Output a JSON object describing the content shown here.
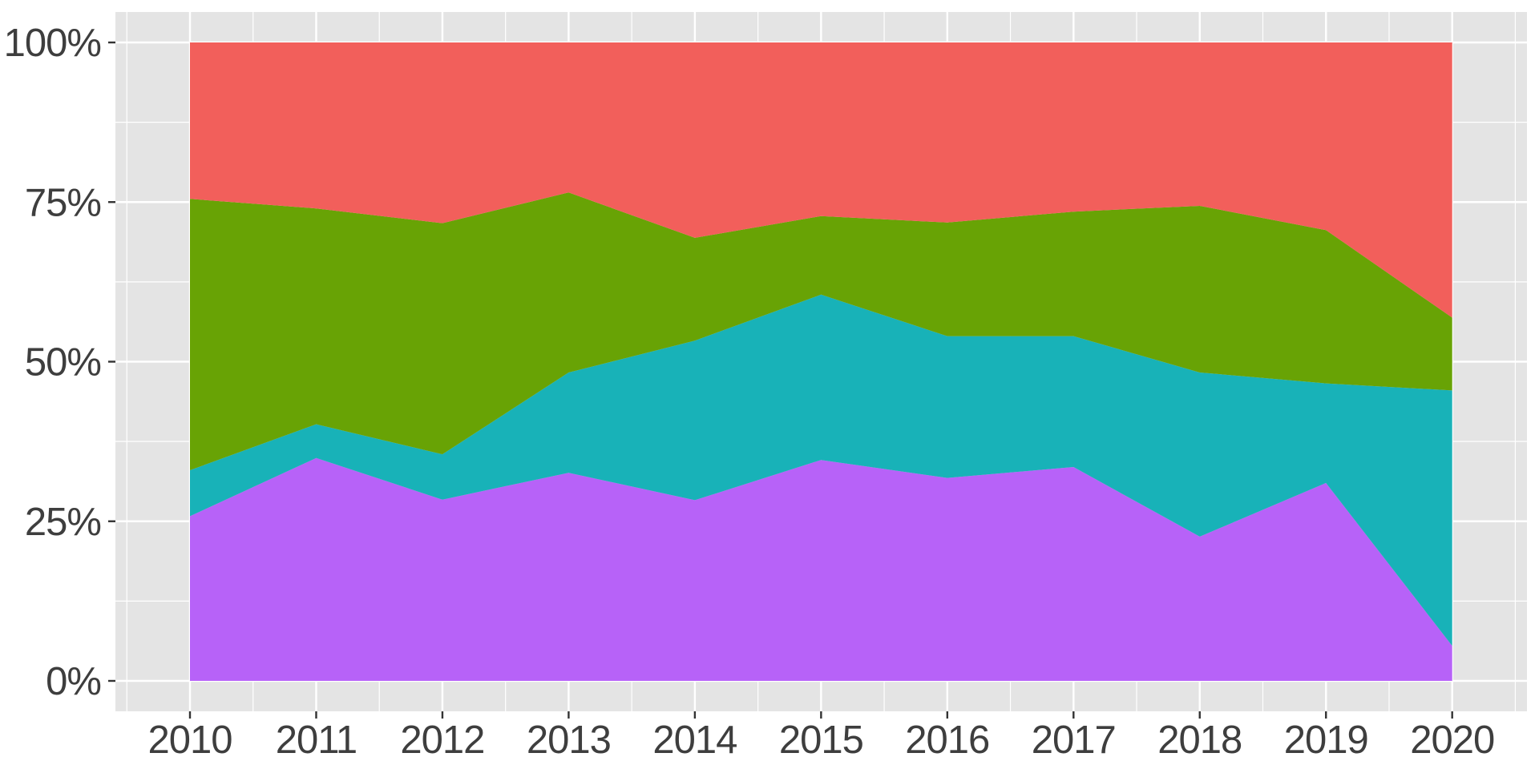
{
  "chart_data": {
    "type": "area",
    "stacking": "percent",
    "title": "",
    "xlabel": "",
    "ylabel": "",
    "legend_position": "none",
    "grid": "on",
    "x": [
      2010,
      2011,
      2012,
      2013,
      2014,
      2015,
      2016,
      2017,
      2018,
      2019,
      2020
    ],
    "x_tick_labels": [
      "2010",
      "2011",
      "2012",
      "2013",
      "2014",
      "2015",
      "2016",
      "2017",
      "2018",
      "2019",
      "2020"
    ],
    "y_tick_labels": [
      "0%",
      "25%",
      "50%",
      "75%",
      "100%"
    ],
    "y_major_ticks_pct": [
      0,
      25,
      50,
      75,
      100
    ],
    "y_minor_ticks_pct": [
      12.5,
      37.5,
      62.5,
      87.5
    ],
    "ylim": [
      0,
      100
    ],
    "series": [
      {
        "name": "purple",
        "color": "#B762F8",
        "values": [
          25.8,
          34.9,
          28.4,
          32.6,
          28.3,
          34.6,
          31.8,
          33.5,
          22.6,
          31.0,
          5.5
        ]
      },
      {
        "name": "teal",
        "color": "#18B2B8",
        "values": [
          7.2,
          5.3,
          7.1,
          15.7,
          25.0,
          25.9,
          22.2,
          20.5,
          25.7,
          15.6,
          40.0
        ]
      },
      {
        "name": "green",
        "color": "#68A305",
        "values": [
          42.5,
          33.8,
          36.2,
          28.2,
          16.1,
          12.3,
          17.8,
          19.5,
          26.1,
          24.0,
          11.4
        ]
      },
      {
        "name": "red",
        "color": "#F25F5B",
        "values": [
          24.5,
          26.0,
          28.3,
          23.5,
          30.6,
          27.2,
          28.2,
          26.5,
          25.6,
          29.4,
          43.1
        ]
      }
    ]
  },
  "colors": {
    "figure_bg": "#FFFFFF",
    "panel_bg": "#E4E4E4",
    "gridline": "#FFFFFF",
    "axis_text": "#3E3E3E",
    "tick_mark": "#333333"
  }
}
